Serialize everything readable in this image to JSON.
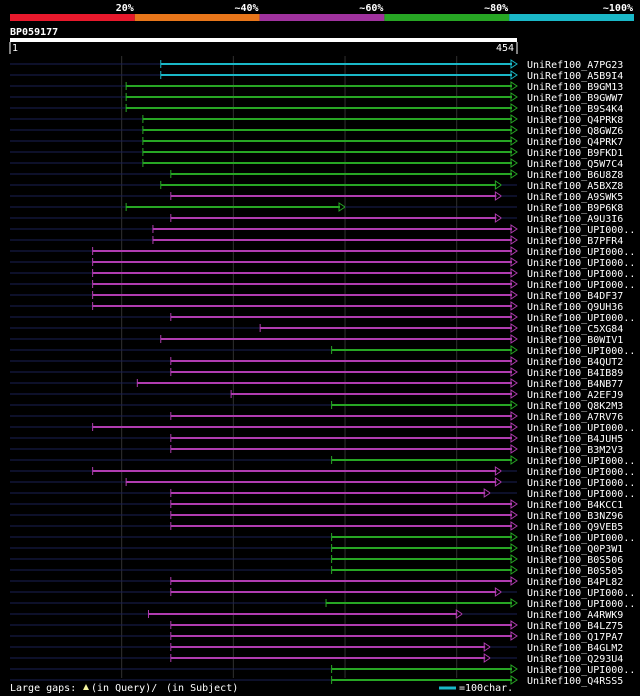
{
  "chart_data": {
    "type": "alignment-overview",
    "query": {
      "name": "BP059177",
      "start_label": "1",
      "end_label": "454",
      "length": 454
    },
    "identity_legend": [
      {
        "label": "20%",
        "color": "#e8192c"
      },
      {
        "label": "~40%",
        "color": "#e8761a"
      },
      {
        "label": "~60%",
        "color": "#a0329e"
      },
      {
        "label": "~80%",
        "color": "#27a624"
      },
      {
        "label": "~100%",
        "color": "#1ab8c8"
      }
    ],
    "rows": [
      {
        "name": "UniRef100_A7PG23",
        "start": 135,
        "end": 454,
        "color": "cyan"
      },
      {
        "name": "UniRef100_A5B9I4",
        "start": 135,
        "end": 454,
        "color": "cyan"
      },
      {
        "name": "UniRef100_B9GM13",
        "start": 104,
        "end": 454,
        "color": "green"
      },
      {
        "name": "UniRef100_B9GWW7",
        "start": 104,
        "end": 454,
        "color": "green"
      },
      {
        "name": "UniRef100_B9S4K4",
        "start": 104,
        "end": 454,
        "color": "green"
      },
      {
        "name": "UniRef100_Q4PRK8",
        "start": 119,
        "end": 454,
        "color": "green"
      },
      {
        "name": "UniRef100_Q8GWZ6",
        "start": 119,
        "end": 454,
        "color": "green"
      },
      {
        "name": "UniRef100_Q4PRK7",
        "start": 119,
        "end": 454,
        "color": "green"
      },
      {
        "name": "UniRef100_B9FKD1",
        "start": 119,
        "end": 454,
        "color": "green"
      },
      {
        "name": "UniRef100_Q5W7C4",
        "start": 119,
        "end": 454,
        "color": "green"
      },
      {
        "name": "UniRef100_B6U8Z8",
        "start": 144,
        "end": 454,
        "color": "green"
      },
      {
        "name": "UniRef100_A5BXZ8",
        "start": 135,
        "end": 440,
        "color": "green"
      },
      {
        "name": "UniRef100_A9SWK5",
        "start": 144,
        "end": 440,
        "color": "magenta"
      },
      {
        "name": "UniRef100_B9P6K8",
        "start": 104,
        "end": 300,
        "color": "green"
      },
      {
        "name": "UniRef100_A9U3I6",
        "start": 144,
        "end": 440,
        "color": "magenta"
      },
      {
        "name": "UniRef100_UPI000..",
        "start": 128,
        "end": 454,
        "color": "magenta"
      },
      {
        "name": "UniRef100_B7PFR4",
        "start": 128,
        "end": 454,
        "color": "magenta"
      },
      {
        "name": "UniRef100_UPI000..",
        "start": 74,
        "end": 454,
        "color": "magenta"
      },
      {
        "name": "UniRef100_UPI000..",
        "start": 74,
        "end": 454,
        "color": "magenta"
      },
      {
        "name": "UniRef100_UPI000..",
        "start": 74,
        "end": 454,
        "color": "magenta"
      },
      {
        "name": "UniRef100_UPI000..",
        "start": 74,
        "end": 454,
        "color": "magenta"
      },
      {
        "name": "UniRef100_B4DF37",
        "start": 74,
        "end": 454,
        "color": "magenta"
      },
      {
        "name": "UniRef100_Q9UH36",
        "start": 74,
        "end": 454,
        "color": "magenta"
      },
      {
        "name": "UniRef100_UPI000..",
        "start": 144,
        "end": 454,
        "color": "magenta"
      },
      {
        "name": "UniRef100_C5XG84",
        "start": 224,
        "end": 454,
        "color": "magenta"
      },
      {
        "name": "UniRef100_B0WIV1",
        "start": 135,
        "end": 454,
        "color": "magenta"
      },
      {
        "name": "UniRef100_UPI000..",
        "start": 288,
        "end": 454,
        "color": "green"
      },
      {
        "name": "UniRef100_B4QUT2",
        "start": 144,
        "end": 454,
        "color": "magenta"
      },
      {
        "name": "UniRef100_B4IB89",
        "start": 144,
        "end": 454,
        "color": "magenta"
      },
      {
        "name": "UniRef100_B4NB77",
        "start": 114,
        "end": 454,
        "color": "magenta"
      },
      {
        "name": "UniRef100_A2EFJ9",
        "start": 198,
        "end": 454,
        "color": "magenta"
      },
      {
        "name": "UniRef100_Q8K2M3",
        "start": 288,
        "end": 454,
        "color": "green"
      },
      {
        "name": "UniRef100_A7RV76",
        "start": 144,
        "end": 454,
        "color": "magenta"
      },
      {
        "name": "UniRef100_UPI000..",
        "start": 74,
        "end": 454,
        "color": "magenta"
      },
      {
        "name": "UniRef100_B4JUH5",
        "start": 144,
        "end": 454,
        "color": "magenta"
      },
      {
        "name": "UniRef100_B3M2V3",
        "start": 144,
        "end": 454,
        "color": "magenta"
      },
      {
        "name": "UniRef100_UPI000..",
        "start": 288,
        "end": 454,
        "color": "green"
      },
      {
        "name": "UniRef100_UPI000..",
        "start": 74,
        "end": 440,
        "color": "magenta"
      },
      {
        "name": "UniRef100_UPI000..",
        "start": 104,
        "end": 440,
        "color": "magenta"
      },
      {
        "name": "UniRef100_UPI000..",
        "start": 144,
        "end": 430,
        "color": "magenta"
      },
      {
        "name": "UniRef100_B4KCC1",
        "start": 144,
        "end": 454,
        "color": "magenta"
      },
      {
        "name": "UniRef100_B3NZ96",
        "start": 144,
        "end": 454,
        "color": "magenta"
      },
      {
        "name": "UniRef100_Q9VEB5",
        "start": 144,
        "end": 454,
        "color": "magenta"
      },
      {
        "name": "UniRef100_UPI000..",
        "start": 288,
        "end": 454,
        "color": "green"
      },
      {
        "name": "UniRef100_Q0P3W1",
        "start": 288,
        "end": 454,
        "color": "green"
      },
      {
        "name": "UniRef100_B0S506",
        "start": 288,
        "end": 454,
        "color": "green"
      },
      {
        "name": "UniRef100_B0S505",
        "start": 288,
        "end": 454,
        "color": "green"
      },
      {
        "name": "UniRef100_B4PL82",
        "start": 144,
        "end": 454,
        "color": "magenta"
      },
      {
        "name": "UniRef100_UPI000..",
        "start": 144,
        "end": 440,
        "color": "magenta"
      },
      {
        "name": "UniRef100_UPI000..",
        "start": 283,
        "end": 454,
        "color": "green"
      },
      {
        "name": "UniRef100_A4RWK9",
        "start": 124,
        "end": 405,
        "color": "magenta"
      },
      {
        "name": "UniRef100_B4LZ75",
        "start": 144,
        "end": 454,
        "color": "magenta"
      },
      {
        "name": "UniRef100_Q17PA7",
        "start": 144,
        "end": 454,
        "color": "magenta"
      },
      {
        "name": "UniRef100_B4GLM2",
        "start": 144,
        "end": 430,
        "color": "magenta"
      },
      {
        "name": "UniRef100_Q293U4",
        "start": 144,
        "end": 430,
        "color": "magenta"
      },
      {
        "name": "UniRef100_UPI000..",
        "start": 288,
        "end": 454,
        "color": "green"
      },
      {
        "name": "UniRef100_Q4RSS5",
        "start": 288,
        "end": 454,
        "color": "green"
      }
    ],
    "footer": {
      "gaps_label": "Large gaps:",
      "query_gap_label": "(in Query)/",
      "subject_gap_label": "(in Subject)",
      "scale_label": "=100char."
    }
  }
}
